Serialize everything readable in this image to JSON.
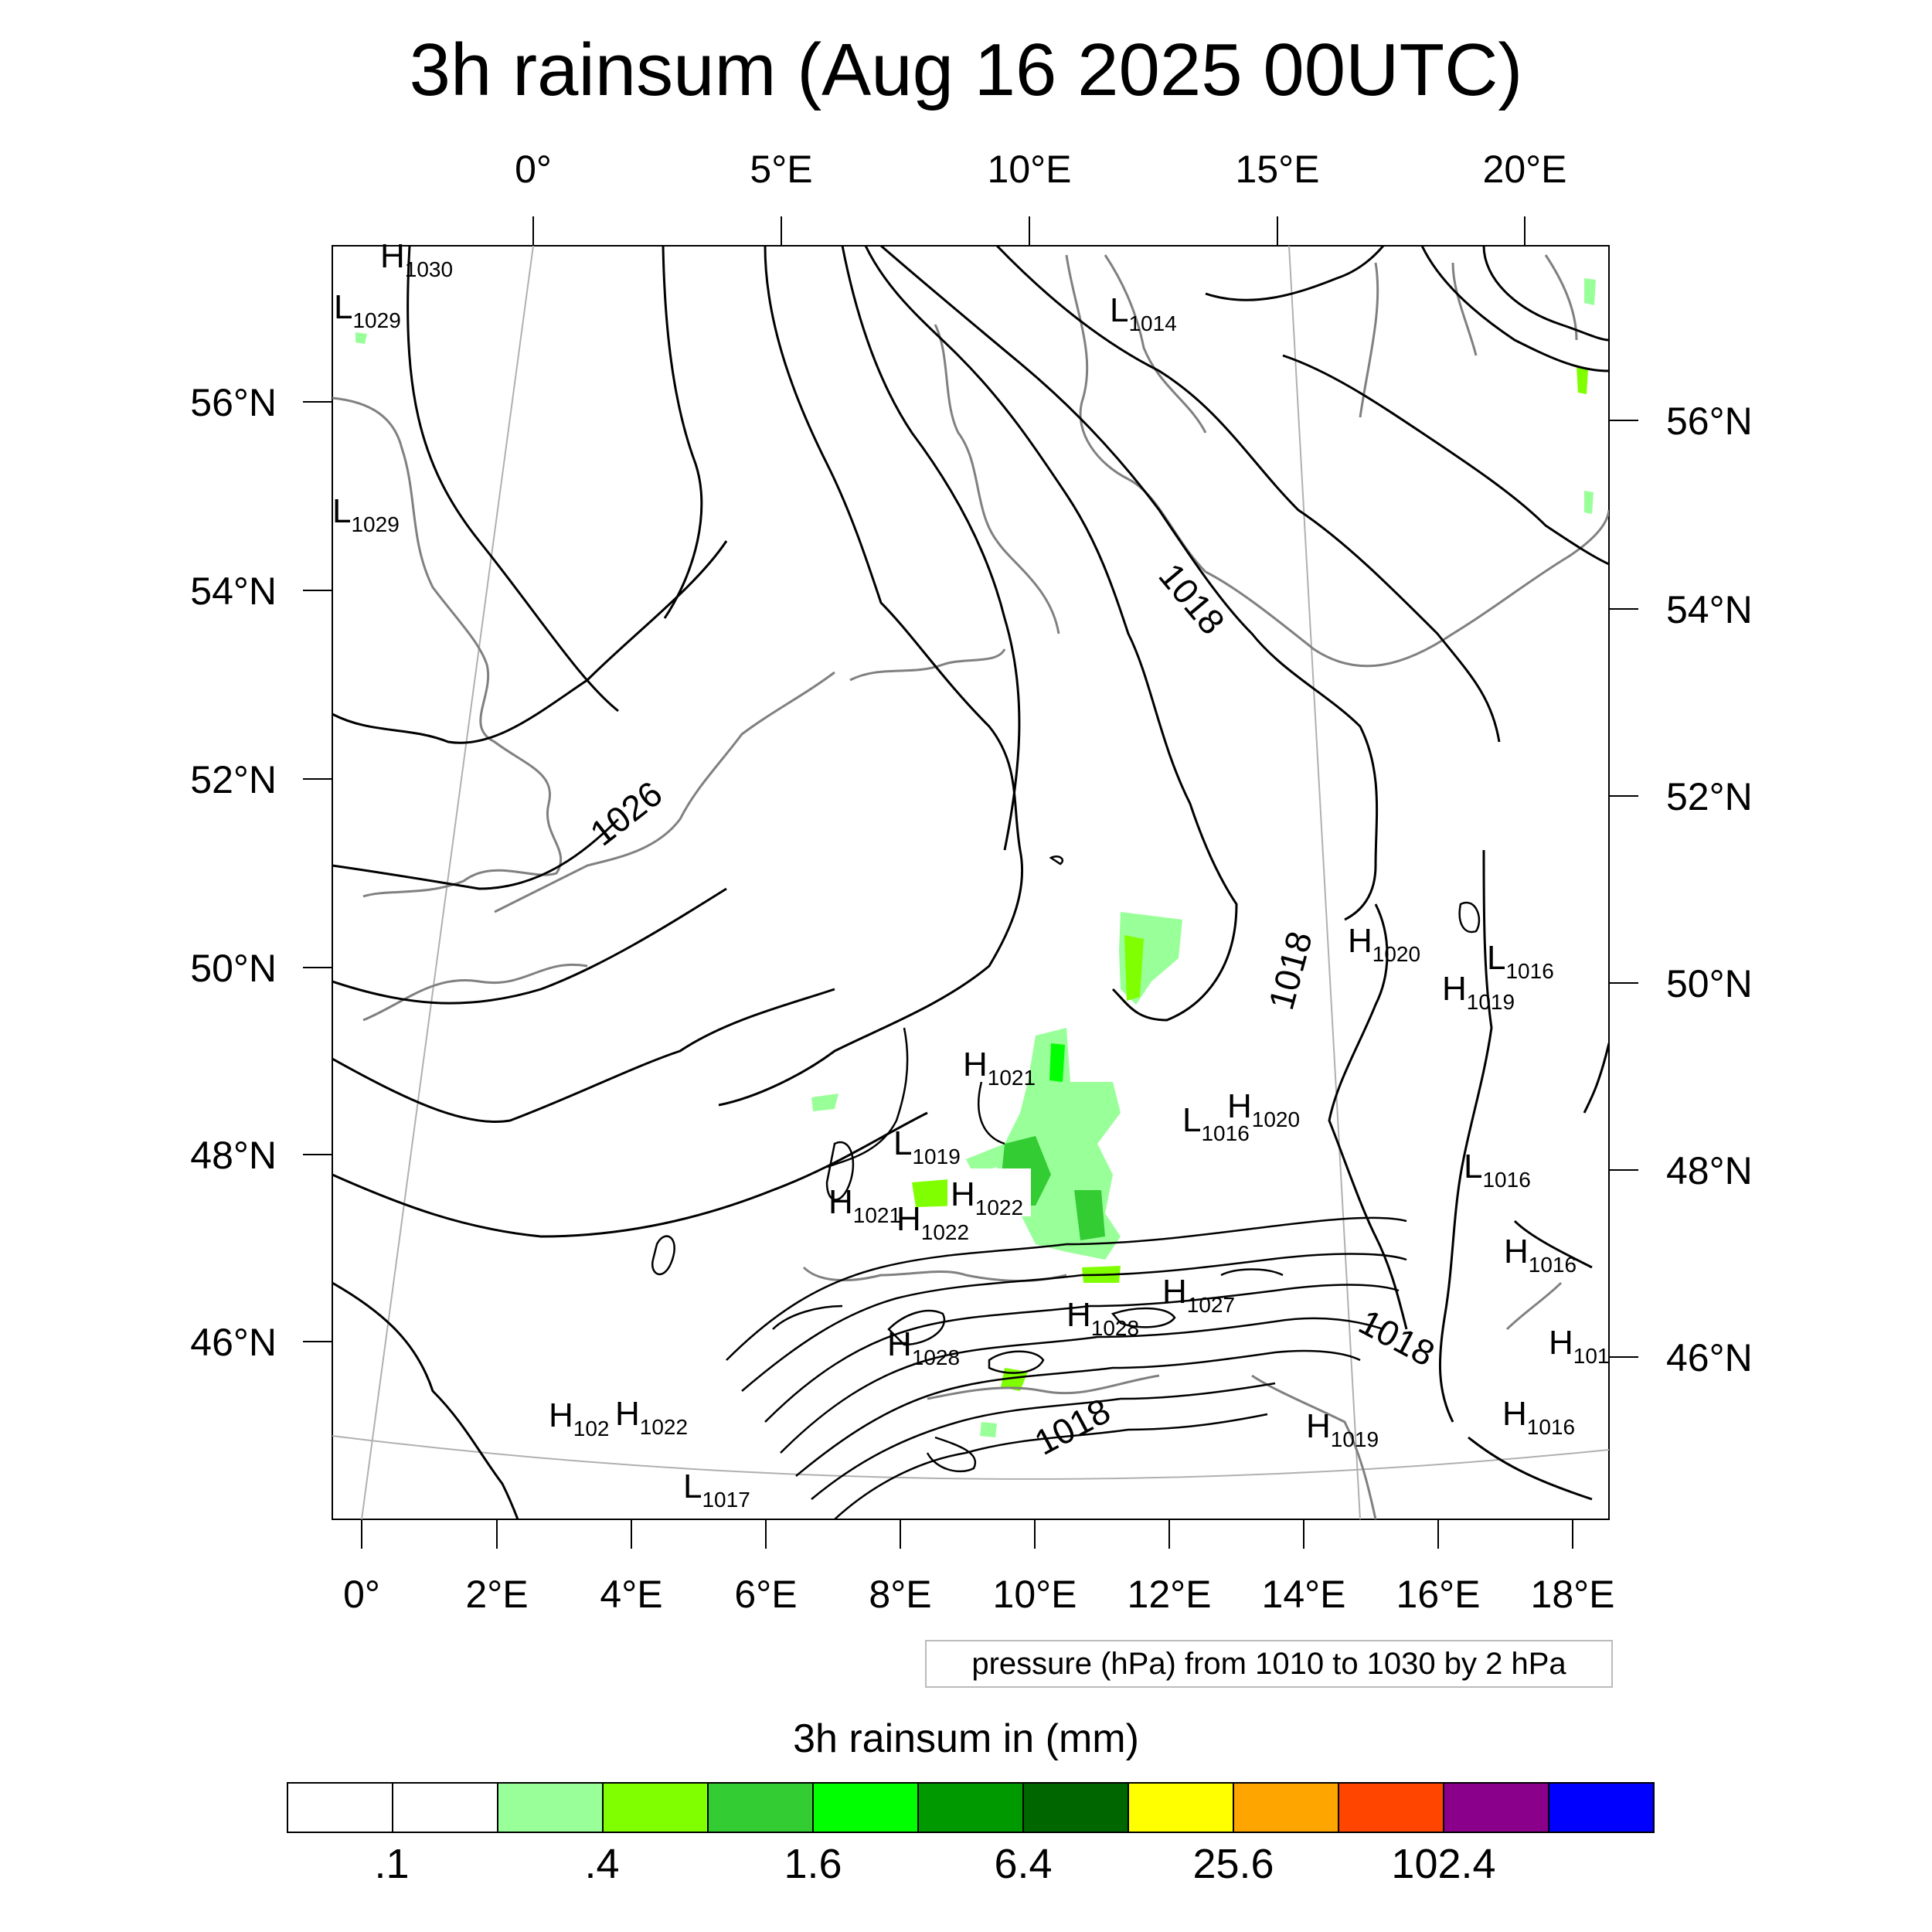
{
  "title": "3h rainsum (Aug 16 2025 00UTC)",
  "top_lon_labels": [
    "0°",
    "5°E",
    "10°E",
    "15°E",
    "20°E"
  ],
  "bottom_lon_labels": [
    "0°",
    "2°E",
    "4°E",
    "6°E",
    "8°E",
    "10°E",
    "12°E",
    "14°E",
    "16°E",
    "18°E"
  ],
  "left_lat_labels": [
    "56°N",
    "54°N",
    "52°N",
    "50°N",
    "48°N",
    "46°N"
  ],
  "right_lat_labels": [
    "56°N",
    "54°N",
    "52°N",
    "50°N",
    "48°N",
    "46°N"
  ],
  "isobar_labels": [
    "1026",
    "1018",
    "1018",
    "1018",
    "1018"
  ],
  "pressure_centers": [
    {
      "kind": "H",
      "value": "1030"
    },
    {
      "kind": "L",
      "value": "1029"
    },
    {
      "kind": "L",
      "value": "1029"
    },
    {
      "kind": "L",
      "value": "1014"
    },
    {
      "kind": "H",
      "value": "1020"
    },
    {
      "kind": "L",
      "value": "1016"
    },
    {
      "kind": "H",
      "value": "1019"
    },
    {
      "kind": "H",
      "value": "1021"
    },
    {
      "kind": "L",
      "value": "1019"
    },
    {
      "kind": "H",
      "value": "1022"
    },
    {
      "kind": "H",
      "value": "1021"
    },
    {
      "kind": "H",
      "value": "1022"
    },
    {
      "kind": "L",
      "value": "1016"
    },
    {
      "kind": "H",
      "value": "1020"
    },
    {
      "kind": "L",
      "value": "1016"
    },
    {
      "kind": "H",
      "value": "1016"
    },
    {
      "kind": "H",
      "value": "1027"
    },
    {
      "kind": "H",
      "value": "1028"
    },
    {
      "kind": "H",
      "value": "1028"
    },
    {
      "kind": "H",
      "value": "101"
    },
    {
      "kind": "H",
      "value": "102"
    },
    {
      "kind": "H",
      "value": "1022"
    },
    {
      "kind": "H",
      "value": "1016"
    },
    {
      "kind": "H",
      "value": "1019"
    },
    {
      "kind": "L",
      "value": "1017"
    }
  ],
  "info_box": "pressure (hPa) from 1010 to 1030 by 2 hPa",
  "legend": {
    "title": "3h rainsum in (mm)",
    "colors": [
      "#ffffff",
      "#ffffff",
      "#99ff99",
      "#80ff00",
      "#33cc33",
      "#00ff00",
      "#009900",
      "#006600",
      "#ffff00",
      "#ffa500",
      "#ff4500",
      "#8b008b",
      "#0000ff"
    ],
    "labels": [
      ".1",
      ".4",
      "1.6",
      "6.4",
      "25.6",
      "102.4"
    ]
  },
  "map_colors": {
    "coastline": "#808080",
    "isobar": "#000000",
    "graticule": "#b0b0b0",
    "rain_light": "#99ff99",
    "rain_lime": "#80ff00",
    "rain_mid": "#33cc33",
    "rain_bright": "#00ff00",
    "rain_dark": "#009900"
  }
}
